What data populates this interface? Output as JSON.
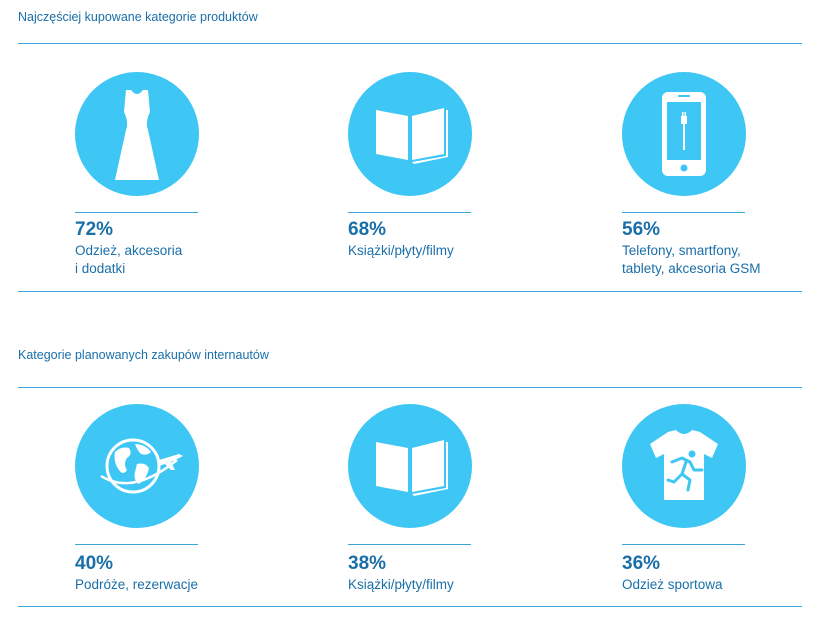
{
  "section1": {
    "title": "Najczęściej kupowane kategorie produktów",
    "items": [
      {
        "icon": "dress-icon",
        "percent": "72%",
        "label_line1": "Odzież, akcesoria",
        "label_line2": "i dodatki"
      },
      {
        "icon": "book-icon",
        "percent": "68%",
        "label_line1": "Książki/płyty/filmy",
        "label_line2": ""
      },
      {
        "icon": "smartphone-icon",
        "percent": "56%",
        "label_line1": "Telefony, smartfony,",
        "label_line2": "tablety, akcesoria GSM"
      }
    ]
  },
  "section2": {
    "title": "Kategorie planowanych zakupów internautów",
    "items": [
      {
        "icon": "globe-plane-icon",
        "percent": "40%",
        "label_line1": "Podróże, rezerwacje",
        "label_line2": ""
      },
      {
        "icon": "book-icon",
        "percent": "38%",
        "label_line1": "Książki/płyty/filmy",
        "label_line2": ""
      },
      {
        "icon": "sport-shirt-icon",
        "percent": "36%",
        "label_line1": "Odzież sportowa",
        "label_line2": ""
      }
    ]
  },
  "colors": {
    "accent": "#3ec6f4",
    "text": "#1a6fa8",
    "rule": "#3aa7d8"
  }
}
